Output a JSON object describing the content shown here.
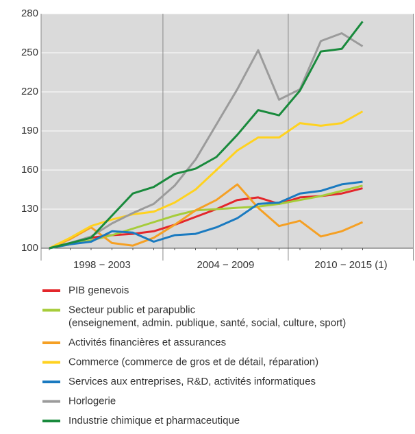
{
  "chart_data": {
    "type": "line",
    "categories": [
      null,
      null,
      null,
      null,
      null,
      null,
      null,
      null,
      null,
      null,
      null,
      null,
      null,
      null,
      null,
      null
    ],
    "x_groups": [
      "1998 − 2003",
      "2004 − 2009",
      "2010 − 2015 (1)"
    ],
    "ylim": [
      100,
      280
    ],
    "yticks": [
      100,
      130,
      160,
      190,
      220,
      250,
      280
    ],
    "grid": true,
    "series": [
      {
        "name": "PIB genevois",
        "color": "#e3262b",
        "values": [
          100,
          104,
          108,
          110,
          111,
          113,
          118,
          124,
          130,
          137,
          139,
          134,
          139,
          140,
          142,
          146
        ]
      },
      {
        "name": [
          "Secteur public et parapublic",
          "(enseignement, admin. publique, santé, social, culture, sport)"
        ],
        "color": "#a6cc3a",
        "values": [
          100,
          103,
          106,
          110,
          115,
          120,
          125,
          129,
          130,
          131,
          132,
          134,
          137,
          140,
          144,
          148
        ]
      },
      {
        "name": "Activités financières et assurances",
        "color": "#f5a024",
        "values": [
          100,
          107,
          116,
          104,
          102,
          108,
          118,
          129,
          137,
          149,
          131,
          117,
          121,
          109,
          113,
          120
        ]
      },
      {
        "name": "Commerce (commerce de gros et de détail, réparation)",
        "color": "#ffd21f",
        "values": [
          100,
          108,
          117,
          122,
          126,
          128,
          135,
          145,
          160,
          175,
          185,
          185,
          196,
          194,
          196,
          205
        ]
      },
      {
        "name": "Services aux entreprises, R&D, activités informatiques",
        "color": "#1a7ac0",
        "values": [
          100,
          103,
          105,
          113,
          112,
          105,
          110,
          111,
          116,
          123,
          134,
          135,
          142,
          144,
          149,
          151
        ]
      },
      {
        "name": "Horlogerie",
        "color": "#9b9b9b",
        "values": [
          100,
          104,
          109,
          119,
          127,
          134,
          148,
          168,
          195,
          222,
          252,
          214,
          222,
          259,
          265,
          255
        ]
      },
      {
        "name": "Industrie chimique et pharmaceutique",
        "color": "#198a3c",
        "values": [
          100,
          104,
          108,
          125,
          142,
          147,
          157,
          161,
          170,
          187,
          206,
          202,
          221,
          251,
          253,
          274
        ]
      }
    ]
  }
}
